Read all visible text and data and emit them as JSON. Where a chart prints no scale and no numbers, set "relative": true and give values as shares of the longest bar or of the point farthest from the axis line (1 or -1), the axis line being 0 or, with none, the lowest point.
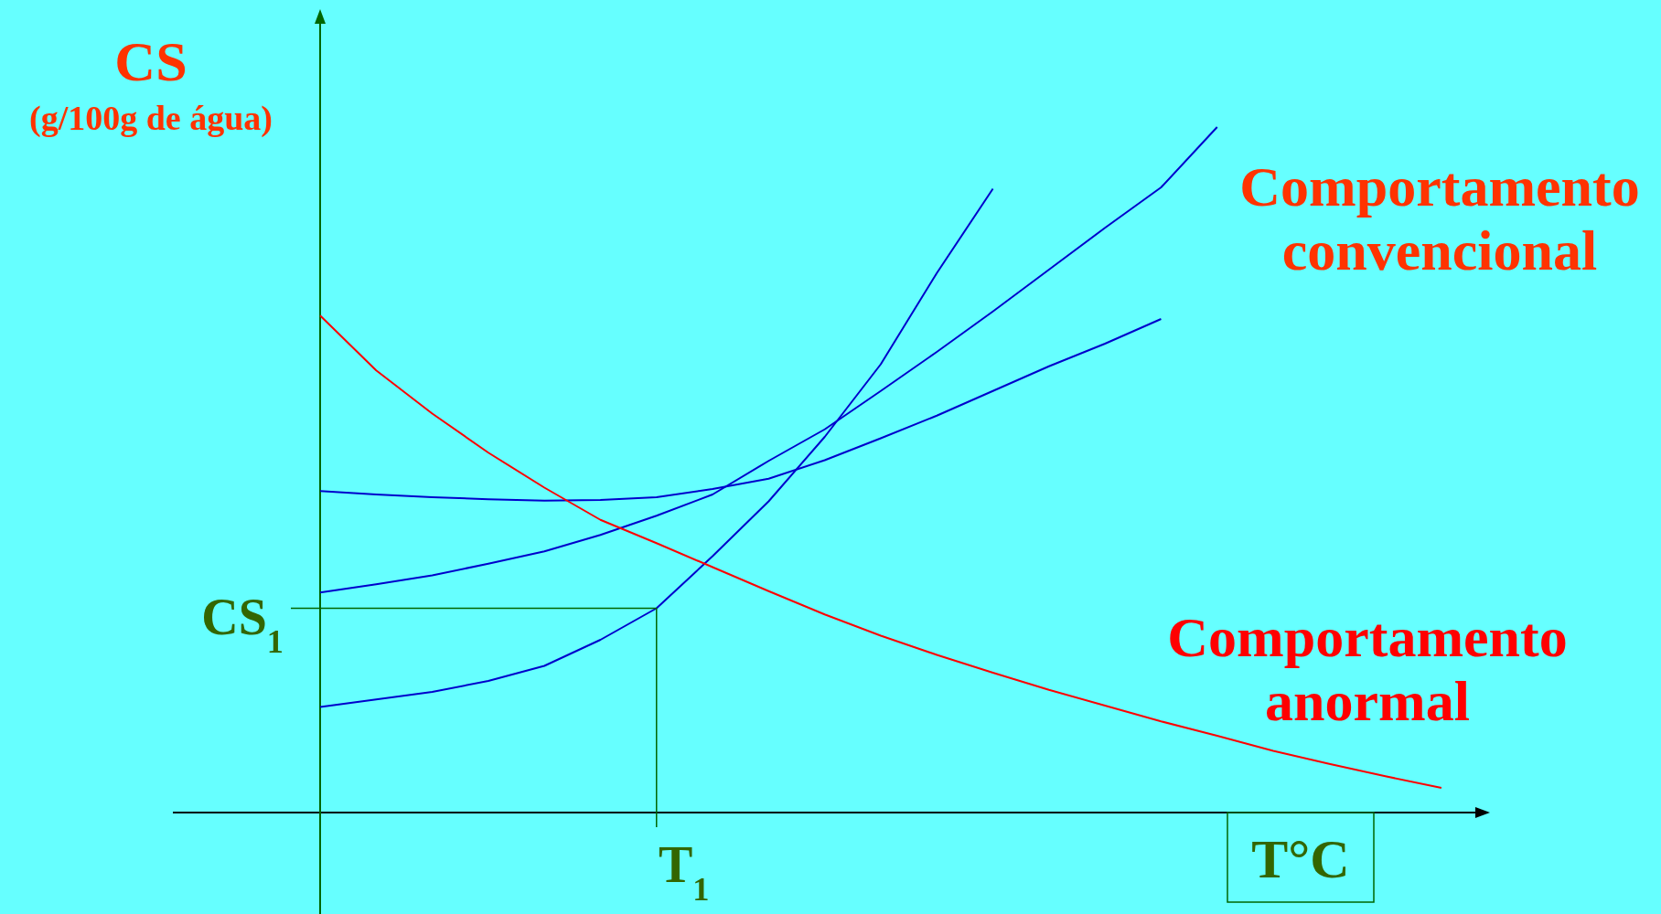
{
  "chart_data": {
    "type": "line",
    "relative": true,
    "ylabel": "CS",
    "xlabel": "T°C",
    "line_style": "solid",
    "categories": [
      null,
      null,
      null,
      null,
      null,
      null,
      null,
      null,
      null,
      null,
      null,
      null,
      null,
      null,
      null,
      null,
      null,
      null,
      null,
      null,
      null
    ],
    "series": [
      {
        "color": "#0000cc",
        "values": [
          0.154,
          0.165,
          0.176,
          0.192,
          0.214,
          0.252,
          0.298,
          0.374,
          0.454,
          0.548,
          0.654,
          0.787,
          0.91,
          null,
          null,
          null,
          null,
          null,
          null,
          null,
          null
        ]
      },
      {
        "color": "#0000cc",
        "values": [
          0.321,
          0.333,
          0.346,
          0.363,
          0.381,
          0.405,
          0.433,
          0.464,
          0.513,
          0.559,
          0.615,
          0.672,
          0.731,
          0.792,
          0.853,
          0.912,
          1,
          null,
          null,
          null,
          null
        ]
      },
      {
        "color": "#0000cc",
        "values": [
          0.469,
          0.464,
          0.46,
          0.457,
          0.455,
          0.456,
          0.46,
          0.472,
          0.487,
          0.514,
          0.546,
          0.579,
          0.615,
          0.651,
          0.684,
          0.72,
          null,
          null,
          null,
          null,
          null
        ]
      },
      {
        "color": "#ff0000",
        "values": [
          0.725,
          0.645,
          0.582,
          0.525,
          0.474,
          0.427,
          0.393,
          0.358,
          0.323,
          0.289,
          0.258,
          0.23,
          0.204,
          0.179,
          0.156,
          0.133,
          0.112,
          0.09,
          0.071,
          0.053,
          0.036
        ]
      }
    ],
    "annotations": [
      "(g/100g de água)",
      "Comportamento convencional",
      "Comportamento anormal",
      "T$_{1}$",
      "CS$_{1}$"
    ]
  }
}
